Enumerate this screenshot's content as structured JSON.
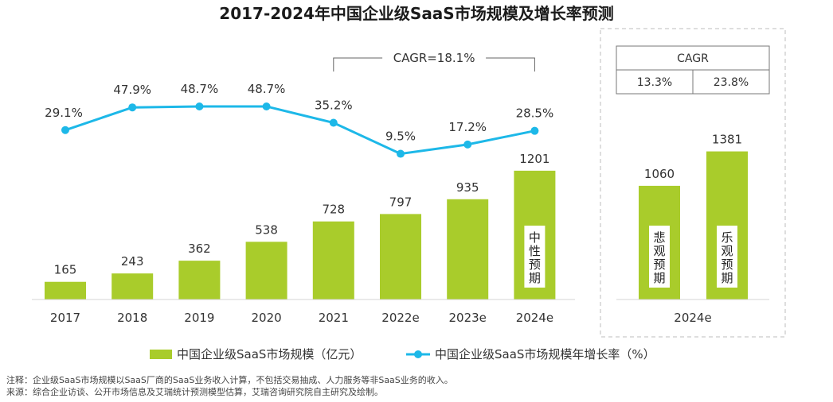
{
  "chart_data": {
    "type": "bar",
    "title": "2017-2024年中国企业级SaaS市场规模及增长率预测",
    "categories": [
      "2017",
      "2018",
      "2019",
      "2020",
      "2021",
      "2022e",
      "2023e",
      "2024e"
    ],
    "series": [
      {
        "name": "中国企业级SaaS市场规模（亿元）",
        "type": "bar",
        "values": [
          165,
          243,
          362,
          538,
          728,
          797,
          935,
          1201
        ],
        "color": "#a9cc2b"
      },
      {
        "name": "中国企业级SaaS市场规模年增长率（%）",
        "type": "line",
        "values": [
          29.1,
          47.9,
          48.7,
          48.7,
          35.2,
          9.5,
          17.2,
          28.5
        ],
        "labels": [
          "29.1%",
          "47.9%",
          "48.7%",
          "48.7%",
          "35.2%",
          "9.5%",
          "17.2%",
          "28.5%"
        ],
        "color": "#1db8e8"
      }
    ],
    "bar_inner_label": "中性预期",
    "cagr_bracket_label": "CAGR=18.1%",
    "scenario_panel": {
      "category": "2024e",
      "bars": [
        {
          "label": "悲观预期",
          "value": 1060
        },
        {
          "label": "乐观预期",
          "value": 1381
        }
      ],
      "cagr_header": "CAGR",
      "cagr_values": [
        "13.3%",
        "23.8%"
      ]
    },
    "notes": [
      "注释：企业级SaaS市场规模以SaaS厂商的SaaS业务收入计算，不包括交易抽成、人力服务等非SaaS业务的收入。",
      "来源：综合企业访谈、公开市场信息及艾瑞统计预测模型估算，艾瑞咨询研究院自主研究及绘制。"
    ]
  }
}
